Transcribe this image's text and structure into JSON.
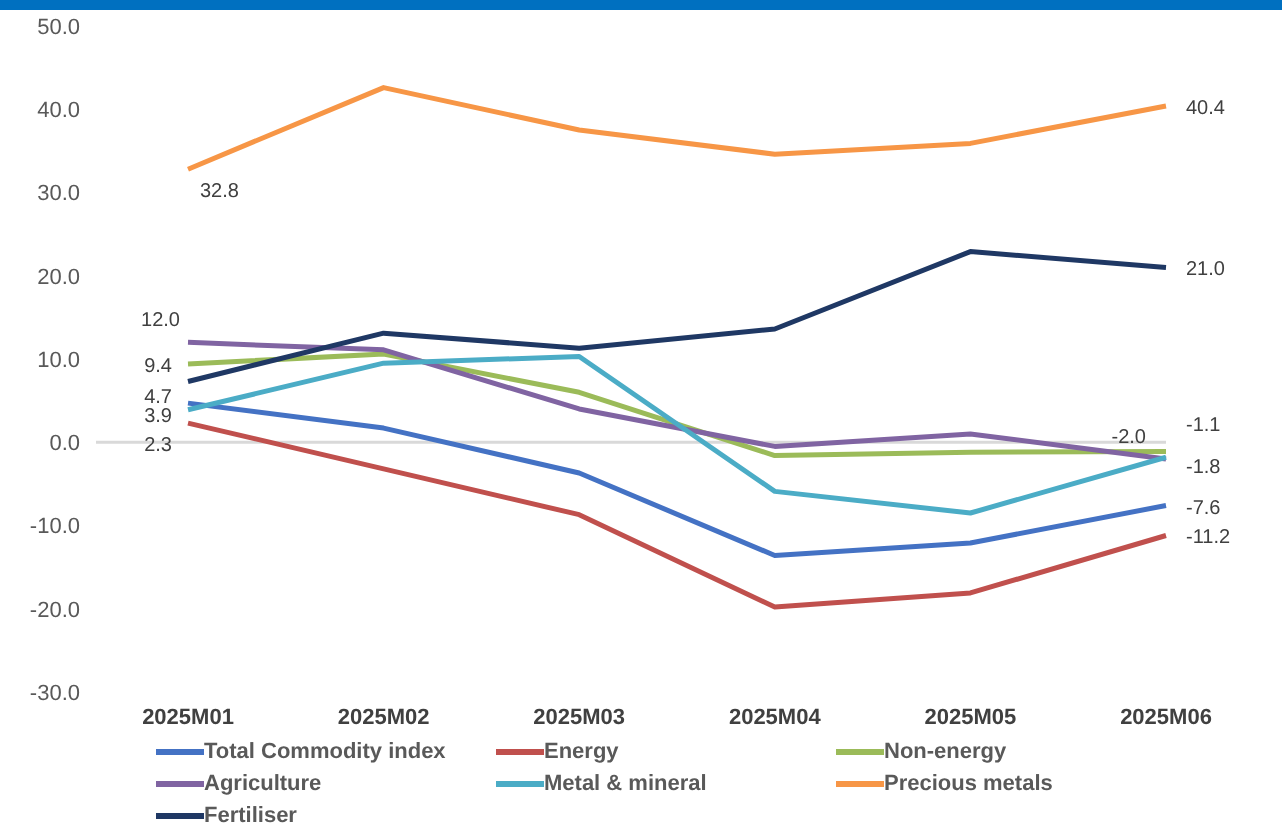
{
  "chart_data": {
    "type": "line",
    "categories": [
      "2025M01",
      "2025M02",
      "2025M03",
      "2025M04",
      "2025M05",
      "2025M06"
    ],
    "series": [
      {
        "name": "Total Commodity index",
        "color": "#4472c4",
        "values": [
          4.7,
          1.7,
          -3.7,
          -13.6,
          -12.1,
          -7.6
        ],
        "value_labels": [
          "4.7",
          null,
          null,
          null,
          null,
          "-7.6"
        ]
      },
      {
        "name": "Energy",
        "color": "#c0504d",
        "values": [
          2.3,
          -3.2,
          -8.7,
          -19.8,
          -18.1,
          -11.2
        ],
        "value_labels": [
          "2.3",
          null,
          null,
          null,
          null,
          "-11.2"
        ]
      },
      {
        "name": "Non-energy",
        "color": "#9bbb59",
        "values": [
          9.4,
          10.6,
          6.0,
          -1.6,
          -1.2,
          -1.1
        ],
        "value_labels": [
          "9.4",
          null,
          null,
          null,
          null,
          "-1.1"
        ]
      },
      {
        "name": "Agriculture",
        "color": "#8064a2",
        "values": [
          12.0,
          11.1,
          4.0,
          -0.5,
          1.0,
          -2.0
        ],
        "value_labels": [
          "12.0",
          null,
          null,
          null,
          null,
          "-2.0"
        ]
      },
      {
        "name": "Metal & mineral",
        "color": "#4bacc6",
        "values": [
          3.9,
          9.5,
          10.3,
          -5.9,
          -8.5,
          -1.8
        ],
        "value_labels": [
          "3.9",
          null,
          null,
          null,
          null,
          "-1.8"
        ]
      },
      {
        "name": "Precious metals",
        "color": "#f79646",
        "values": [
          32.8,
          42.6,
          37.5,
          34.6,
          35.9,
          40.4
        ],
        "value_labels": [
          "32.8",
          null,
          null,
          null,
          null,
          "40.4"
        ]
      },
      {
        "name": "Fertiliser",
        "color": "#1f3864",
        "values": [
          7.3,
          13.1,
          11.3,
          13.6,
          22.9,
          21.0
        ],
        "value_labels": [
          null,
          null,
          null,
          null,
          null,
          "21.0"
        ]
      }
    ],
    "ylim": [
      -30,
      50
    ],
    "yticks": [
      {
        "value": -30,
        "label": "-30.0"
      },
      {
        "value": -20,
        "label": "-20.0"
      },
      {
        "value": -10,
        "label": "-10.0"
      },
      {
        "value": 0,
        "label": "0.0"
      },
      {
        "value": 10,
        "label": "10.0"
      },
      {
        "value": 20,
        "label": "20.0"
      },
      {
        "value": 30,
        "label": "30.0"
      },
      {
        "value": 40,
        "label": "40.0"
      },
      {
        "value": 50,
        "label": "50.0"
      }
    ],
    "ref_lines": [
      {
        "axis": "y",
        "value": 0,
        "color": "#d9d9d9"
      }
    ],
    "grid": false,
    "legend": "bottom",
    "marker": "none",
    "line_style": "solid"
  }
}
